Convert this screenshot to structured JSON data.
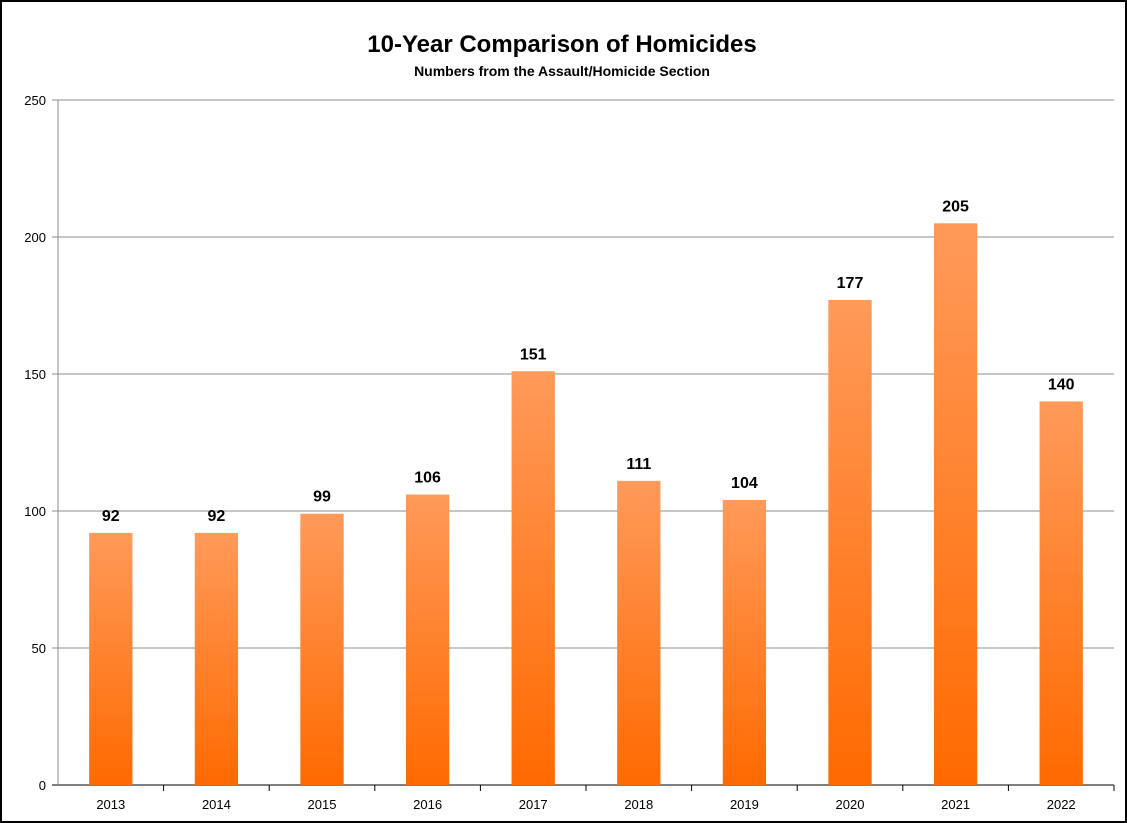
{
  "chart_data": {
    "type": "bar",
    "title": "10-Year Comparison of Homicides",
    "subtitle": "Numbers from the Assault/Homicide Section",
    "categories": [
      "2013",
      "2014",
      "2015",
      "2016",
      "2017",
      "2018",
      "2019",
      "2020",
      "2021",
      "2022"
    ],
    "values": [
      92,
      92,
      99,
      106,
      151,
      111,
      104,
      177,
      205,
      140
    ],
    "xlabel": "",
    "ylabel": "",
    "ylim": [
      0,
      250
    ],
    "yticks": [
      0,
      50,
      100,
      150,
      200,
      250
    ],
    "grid": true,
    "legend": "none",
    "data_labels": true,
    "colors": {
      "bar_top": "#ff9a5a",
      "bar_bottom": "#ff6a00",
      "grid": "#8c8c8c"
    }
  }
}
